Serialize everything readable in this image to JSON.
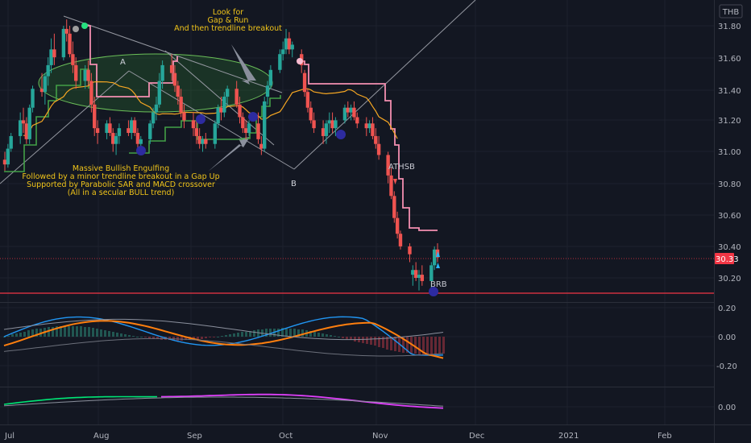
{
  "chart_data": {
    "type": "candlestick",
    "currency": "THB",
    "last_price": "30.33",
    "price_axis_ticks": [
      "31.80",
      "31.60",
      "31.40",
      "31.20",
      "31.00",
      "30.80",
      "30.60",
      "30.40",
      "30.20"
    ],
    "price_ylim": [
      30.06,
      31.97
    ],
    "macd_axis_ticks": [
      "0.20",
      "0.00",
      "-0.20"
    ],
    "osc_axis_ticks": [
      "0.00"
    ],
    "time_axis_ticks": [
      "Jul",
      "Aug",
      "Sep",
      "Oct",
      "Nov",
      "Dec",
      "2021",
      "Feb"
    ],
    "support_level": 30.1,
    "annotations": {
      "top": [
        "Look for",
        "Gap & Run",
        "And then trendline breakout"
      ],
      "bottom": [
        "Massive Bullish Engulfing",
        "Followed by a minor trendline breakout in a Gap Up",
        "Supported by Parabolic SAR and MACD crossover",
        "(All in a secular BULL trend)"
      ],
      "point_a": "A",
      "point_b": "B",
      "athsb": "ATHSB",
      "brb": "BRB"
    },
    "candles": [
      {
        "date": "2020-07-01",
        "o": 30.95,
        "h": 31.0,
        "l": 30.88,
        "c": 30.92
      },
      {
        "date": "2020-07-02",
        "o": 30.92,
        "h": 31.05,
        "l": 30.9,
        "c": 31.02
      },
      {
        "date": "2020-07-03",
        "o": 31.02,
        "h": 31.12,
        "l": 31.0,
        "c": 31.1
      },
      {
        "date": "2020-07-06",
        "o": 31.1,
        "h": 31.25,
        "l": 31.05,
        "c": 31.2
      },
      {
        "date": "2020-07-07",
        "o": 31.2,
        "h": 31.28,
        "l": 31.12,
        "c": 31.18
      },
      {
        "date": "2020-07-08",
        "o": 31.18,
        "h": 31.22,
        "l": 31.05,
        "c": 31.08
      },
      {
        "date": "2020-07-09",
        "o": 31.08,
        "h": 31.3,
        "l": 31.05,
        "c": 31.28
      },
      {
        "date": "2020-07-10",
        "o": 31.28,
        "h": 31.42,
        "l": 31.25,
        "c": 31.4
      },
      {
        "date": "2020-07-13",
        "o": 31.4,
        "h": 31.5,
        "l": 31.35,
        "c": 31.38
      },
      {
        "date": "2020-07-14",
        "o": 31.38,
        "h": 31.5,
        "l": 31.3,
        "c": 31.48
      },
      {
        "date": "2020-07-15",
        "o": 31.48,
        "h": 31.6,
        "l": 31.42,
        "c": 31.55
      },
      {
        "date": "2020-07-16",
        "o": 31.55,
        "h": 31.72,
        "l": 31.5,
        "c": 31.65
      },
      {
        "date": "2020-07-17",
        "o": 31.65,
        "h": 31.75,
        "l": 31.55,
        "c": 31.6
      },
      {
        "date": "2020-07-20",
        "o": 31.6,
        "h": 31.8,
        "l": 31.58,
        "c": 31.78
      },
      {
        "date": "2020-07-21",
        "o": 31.78,
        "h": 31.84,
        "l": 31.7,
        "c": 31.75
      },
      {
        "date": "2020-07-22",
        "o": 31.75,
        "h": 31.8,
        "l": 31.6,
        "c": 31.62
      },
      {
        "date": "2020-07-23",
        "o": 31.62,
        "h": 31.7,
        "l": 31.5,
        "c": 31.55
      },
      {
        "date": "2020-07-24",
        "o": 31.55,
        "h": 31.6,
        "l": 31.4,
        "c": 31.45
      },
      {
        "date": "2020-07-27",
        "o": 31.45,
        "h": 31.55,
        "l": 31.4,
        "c": 31.52
      },
      {
        "date": "2020-07-28",
        "o": 31.52,
        "h": 31.58,
        "l": 31.42,
        "c": 31.45
      },
      {
        "date": "2020-07-29",
        "o": 31.45,
        "h": 31.5,
        "l": 31.25,
        "c": 31.3
      },
      {
        "date": "2020-07-30",
        "o": 31.3,
        "h": 31.35,
        "l": 31.1,
        "c": 31.15
      },
      {
        "date": "2020-07-31",
        "o": 31.15,
        "h": 31.2,
        "l": 31.05,
        "c": 31.12
      },
      {
        "date": "2020-08-03",
        "o": 31.12,
        "h": 31.2,
        "l": 31.08,
        "c": 31.18
      },
      {
        "date": "2020-08-04",
        "o": 31.18,
        "h": 31.22,
        "l": 31.1,
        "c": 31.12
      },
      {
        "date": "2020-08-05",
        "o": 31.12,
        "h": 31.15,
        "l": 31.0,
        "c": 31.05
      },
      {
        "date": "2020-08-06",
        "o": 31.05,
        "h": 31.12,
        "l": 30.98,
        "c": 31.1
      },
      {
        "date": "2020-08-07",
        "o": 31.1,
        "h": 31.18,
        "l": 31.05,
        "c": 31.15
      },
      {
        "date": "2020-08-10",
        "o": 31.15,
        "h": 31.2,
        "l": 31.1,
        "c": 31.12
      },
      {
        "date": "2020-08-11",
        "o": 31.12,
        "h": 31.22,
        "l": 31.08,
        "c": 31.2
      },
      {
        "date": "2020-08-12",
        "o": 31.2,
        "h": 31.22,
        "l": 31.1,
        "c": 31.12
      },
      {
        "date": "2020-08-13",
        "o": 31.12,
        "h": 31.15,
        "l": 31.02,
        "c": 31.05
      },
      {
        "date": "2020-08-14",
        "o": 31.05,
        "h": 31.1,
        "l": 31.0,
        "c": 31.08
      },
      {
        "date": "2020-08-17",
        "o": 31.08,
        "h": 31.2,
        "l": 31.05,
        "c": 31.18
      },
      {
        "date": "2020-08-18",
        "o": 31.18,
        "h": 31.28,
        "l": 31.15,
        "c": 31.25
      },
      {
        "date": "2020-08-19",
        "o": 31.25,
        "h": 31.35,
        "l": 31.2,
        "c": 31.3
      },
      {
        "date": "2020-08-20",
        "o": 31.3,
        "h": 31.5,
        "l": 31.28,
        "c": 31.45
      },
      {
        "date": "2020-08-21",
        "o": 31.45,
        "h": 31.58,
        "l": 31.4,
        "c": 31.55
      },
      {
        "date": "2020-08-24",
        "o": 31.55,
        "h": 31.62,
        "l": 31.45,
        "c": 31.5
      },
      {
        "date": "2020-08-25",
        "o": 31.5,
        "h": 31.55,
        "l": 31.38,
        "c": 31.42
      },
      {
        "date": "2020-08-26",
        "o": 31.42,
        "h": 31.45,
        "l": 31.3,
        "c": 31.35
      },
      {
        "date": "2020-08-27",
        "o": 31.35,
        "h": 31.4,
        "l": 31.22,
        "c": 31.25
      },
      {
        "date": "2020-08-28",
        "o": 31.25,
        "h": 31.3,
        "l": 31.15,
        "c": 31.2
      },
      {
        "date": "2020-08-31",
        "o": 31.2,
        "h": 31.25,
        "l": 31.1,
        "c": 31.15
      },
      {
        "date": "2020-09-01",
        "o": 31.15,
        "h": 31.2,
        "l": 31.05,
        "c": 31.1
      },
      {
        "date": "2020-09-02",
        "o": 31.1,
        "h": 31.15,
        "l": 31.02,
        "c": 31.05
      },
      {
        "date": "2020-09-03",
        "o": 31.05,
        "h": 31.1,
        "l": 31.0,
        "c": 31.08
      },
      {
        "date": "2020-09-04",
        "o": 31.08,
        "h": 31.12,
        "l": 31.02,
        "c": 31.05
      },
      {
        "date": "2020-09-07",
        "o": 31.05,
        "h": 31.2,
        "l": 31.02,
        "c": 31.18
      },
      {
        "date": "2020-09-08",
        "o": 31.18,
        "h": 31.3,
        "l": 31.15,
        "c": 31.28
      },
      {
        "date": "2020-09-09",
        "o": 31.28,
        "h": 31.35,
        "l": 31.2,
        "c": 31.25
      },
      {
        "date": "2020-09-10",
        "o": 31.25,
        "h": 31.38,
        "l": 31.22,
        "c": 31.35
      },
      {
        "date": "2020-09-11",
        "o": 31.35,
        "h": 31.42,
        "l": 31.3,
        "c": 31.4
      },
      {
        "date": "2020-09-14",
        "o": 31.4,
        "h": 31.45,
        "l": 31.28,
        "c": 31.3
      },
      {
        "date": "2020-09-15",
        "o": 31.3,
        "h": 31.35,
        "l": 31.18,
        "c": 31.22
      },
      {
        "date": "2020-09-16",
        "o": 31.22,
        "h": 31.25,
        "l": 31.12,
        "c": 31.15
      },
      {
        "date": "2020-09-17",
        "o": 31.15,
        "h": 31.2,
        "l": 31.08,
        "c": 31.12
      },
      {
        "date": "2020-09-18",
        "o": 31.12,
        "h": 31.2,
        "l": 31.1,
        "c": 31.18
      },
      {
        "date": "2020-09-21",
        "o": 31.18,
        "h": 31.25,
        "l": 31.05,
        "c": 31.08
      },
      {
        "date": "2020-09-22",
        "o": 31.05,
        "h": 31.1,
        "l": 30.98,
        "c": 31.02
      },
      {
        "date": "2020-09-23",
        "o": 31.02,
        "h": 31.35,
        "l": 31.0,
        "c": 31.32
      },
      {
        "date": "2020-09-24",
        "o": 31.35,
        "h": 31.45,
        "l": 31.3,
        "c": 31.42
      },
      {
        "date": "2020-09-25",
        "o": 31.42,
        "h": 31.55,
        "l": 31.4,
        "c": 31.52
      },
      {
        "date": "2020-09-28",
        "o": 31.52,
        "h": 31.65,
        "l": 31.5,
        "c": 31.62
      },
      {
        "date": "2020-09-29",
        "o": 31.62,
        "h": 31.7,
        "l": 31.58,
        "c": 31.65
      },
      {
        "date": "2020-09-30",
        "o": 31.65,
        "h": 31.78,
        "l": 31.62,
        "c": 31.72
      },
      {
        "date": "2020-10-01",
        "o": 31.72,
        "h": 31.76,
        "l": 31.62,
        "c": 31.65
      },
      {
        "date": "2020-10-02",
        "o": 31.65,
        "h": 31.7,
        "l": 31.6,
        "c": 31.68
      },
      {
        "date": "2020-10-05",
        "o": 31.62,
        "h": 31.65,
        "l": 31.5,
        "c": 31.55
      },
      {
        "date": "2020-10-06",
        "o": 31.5,
        "h": 31.52,
        "l": 31.35,
        "c": 31.38
      },
      {
        "date": "2020-10-07",
        "o": 31.38,
        "h": 31.4,
        "l": 31.25,
        "c": 31.28
      },
      {
        "date": "2020-10-08",
        "o": 31.28,
        "h": 31.32,
        "l": 31.18,
        "c": 31.2
      },
      {
        "date": "2020-10-09",
        "o": 31.2,
        "h": 31.25,
        "l": 31.12,
        "c": 31.15
      },
      {
        "date": "2020-10-12",
        "o": 31.15,
        "h": 31.2,
        "l": 31.05,
        "c": 31.1
      },
      {
        "date": "2020-10-13",
        "o": 31.1,
        "h": 31.2,
        "l": 31.05,
        "c": 31.18
      },
      {
        "date": "2020-10-14",
        "o": 31.18,
        "h": 31.25,
        "l": 31.12,
        "c": 31.2
      },
      {
        "date": "2020-10-15",
        "o": 31.2,
        "h": 31.25,
        "l": 31.12,
        "c": 31.15
      },
      {
        "date": "2020-10-16",
        "o": 31.15,
        "h": 31.22,
        "l": 31.1,
        "c": 31.2
      },
      {
        "date": "2020-10-19",
        "o": 31.2,
        "h": 31.3,
        "l": 31.18,
        "c": 31.28
      },
      {
        "date": "2020-10-20",
        "o": 31.28,
        "h": 31.32,
        "l": 31.22,
        "c": 31.25
      },
      {
        "date": "2020-10-21",
        "o": 31.25,
        "h": 31.3,
        "l": 31.2,
        "c": 31.28
      },
      {
        "date": "2020-10-22",
        "o": 31.28,
        "h": 31.32,
        "l": 31.2,
        "c": 31.22
      },
      {
        "date": "2020-10-23",
        "o": 31.22,
        "h": 31.25,
        "l": 31.15,
        "c": 31.18
      },
      {
        "date": "2020-10-26",
        "o": 31.18,
        "h": 31.22,
        "l": 31.1,
        "c": 31.15
      },
      {
        "date": "2020-10-27",
        "o": 31.15,
        "h": 31.2,
        "l": 31.12,
        "c": 31.18
      },
      {
        "date": "2020-10-28",
        "o": 31.18,
        "h": 31.22,
        "l": 31.08,
        "c": 31.1
      },
      {
        "date": "2020-10-29",
        "o": 31.1,
        "h": 31.15,
        "l": 31.02,
        "c": 31.05
      },
      {
        "date": "2020-10-30",
        "o": 31.05,
        "h": 31.1,
        "l": 30.95,
        "c": 30.98
      },
      {
        "date": "2020-11-02",
        "o": 30.98,
        "h": 31.0,
        "l": 30.8,
        "c": 30.85
      },
      {
        "date": "2020-11-03",
        "o": 30.85,
        "h": 30.9,
        "l": 30.7,
        "c": 30.72
      },
      {
        "date": "2020-11-04",
        "o": 30.72,
        "h": 30.75,
        "l": 30.55,
        "c": 30.58
      },
      {
        "date": "2020-11-05",
        "o": 30.58,
        "h": 30.62,
        "l": 30.45,
        "c": 30.48
      },
      {
        "date": "2020-11-06",
        "o": 30.48,
        "h": 30.5,
        "l": 30.38,
        "c": 30.4
      },
      {
        "date": "2020-11-09",
        "o": 30.4,
        "h": 30.42,
        "l": 30.3,
        "c": 30.35
      },
      {
        "date": "2020-11-10",
        "o": 30.22,
        "h": 30.28,
        "l": 30.15,
        "c": 30.25
      },
      {
        "date": "2020-11-11",
        "o": 30.25,
        "h": 30.3,
        "l": 30.18,
        "c": 30.2
      },
      {
        "date": "2020-11-12",
        "o": 30.2,
        "h": 30.25,
        "l": 30.12,
        "c": 30.22
      },
      {
        "date": "2020-11-13",
        "o": 30.22,
        "h": 30.28,
        "l": 30.15,
        "c": 30.18
      },
      {
        "date": "2020-11-16",
        "o": 30.18,
        "h": 30.3,
        "l": 30.12,
        "c": 30.28
      },
      {
        "date": "2020-11-17",
        "o": 30.28,
        "h": 30.4,
        "l": 30.25,
        "c": 30.38
      },
      {
        "date": "2020-11-18",
        "o": 30.38,
        "h": 30.42,
        "l": 30.3,
        "c": 30.33
      }
    ]
  }
}
